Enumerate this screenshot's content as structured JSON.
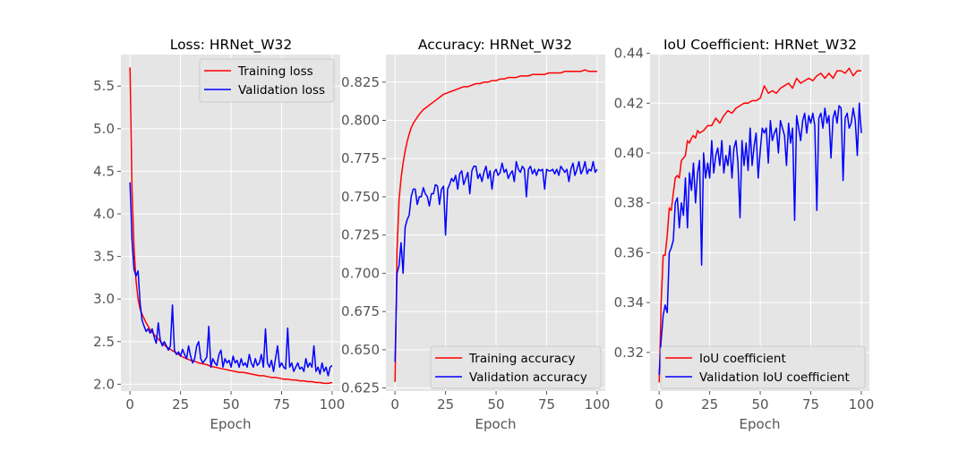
{
  "chart_data": [
    {
      "type": "line",
      "title": "Loss: HRNet_W32",
      "xlabel": "Epoch",
      "ylabel": "",
      "xlim": [
        -4.5,
        104
      ],
      "ylim": [
        1.92,
        5.87
      ],
      "xticks": [
        0,
        25,
        50,
        75,
        100
      ],
      "xtick_labels": [
        "0",
        "25",
        "50",
        "75",
        "100"
      ],
      "yticks": [
        2.0,
        2.5,
        3.0,
        3.5,
        4.0,
        4.5,
        5.0,
        5.5
      ],
      "ytick_labels": [
        "2.0",
        "2.5",
        "3.0",
        "3.5",
        "4.0",
        "4.5",
        "5.0",
        "5.5"
      ],
      "grid": true,
      "legend_position": "upper right",
      "series": [
        {
          "name": "Training loss",
          "color": "#ff0000",
          "x": [
            0,
            1,
            2,
            3,
            4,
            5,
            6,
            7,
            8,
            9,
            10,
            12,
            14,
            16,
            18,
            20,
            22,
            24,
            26,
            28,
            30,
            32,
            34,
            36,
            38,
            40,
            42,
            44,
            46,
            48,
            50,
            52,
            54,
            56,
            58,
            60,
            62,
            64,
            66,
            68,
            70,
            72,
            74,
            76,
            78,
            80,
            82,
            84,
            86,
            88,
            90,
            92,
            94,
            96,
            98,
            100
          ],
          "y": [
            5.72,
            4.3,
            3.6,
            3.22,
            3.0,
            2.88,
            2.82,
            2.77,
            2.72,
            2.68,
            2.64,
            2.58,
            2.53,
            2.48,
            2.44,
            2.41,
            2.38,
            2.35,
            2.32,
            2.3,
            2.28,
            2.27,
            2.25,
            2.24,
            2.23,
            2.21,
            2.2,
            2.19,
            2.18,
            2.17,
            2.16,
            2.15,
            2.14,
            2.14,
            2.13,
            2.12,
            2.11,
            2.1,
            2.1,
            2.09,
            2.08,
            2.08,
            2.07,
            2.06,
            2.06,
            2.05,
            2.05,
            2.04,
            2.04,
            2.03,
            2.03,
            2.02,
            2.02,
            2.01,
            2.01,
            2.02
          ]
        },
        {
          "name": "Validation loss",
          "color": "#0000ff",
          "x": [
            0,
            1,
            2,
            3,
            4,
            5,
            6,
            7,
            8,
            9,
            10,
            11,
            12,
            13,
            14,
            15,
            16,
            17,
            18,
            19,
            20,
            21,
            22,
            23,
            24,
            25,
            26,
            27,
            28,
            29,
            30,
            31,
            32,
            33,
            34,
            35,
            36,
            37,
            38,
            39,
            40,
            41,
            42,
            43,
            44,
            45,
            46,
            47,
            48,
            49,
            50,
            51,
            52,
            53,
            54,
            55,
            56,
            57,
            58,
            59,
            60,
            61,
            62,
            63,
            64,
            65,
            66,
            67,
            68,
            69,
            70,
            71,
            72,
            73,
            74,
            75,
            76,
            77,
            78,
            79,
            80,
            81,
            82,
            83,
            84,
            85,
            86,
            87,
            88,
            89,
            90,
            91,
            92,
            93,
            94,
            95,
            96,
            97,
            98,
            99,
            100
          ],
          "y": [
            4.37,
            3.7,
            3.35,
            3.27,
            3.33,
            2.95,
            2.75,
            2.68,
            2.62,
            2.65,
            2.6,
            2.65,
            2.55,
            2.48,
            2.72,
            2.52,
            2.45,
            2.5,
            2.45,
            2.4,
            2.45,
            2.93,
            2.4,
            2.35,
            2.38,
            2.33,
            2.41,
            2.35,
            2.3,
            2.45,
            2.33,
            2.25,
            2.3,
            2.45,
            2.5,
            2.3,
            2.25,
            2.28,
            2.32,
            2.68,
            2.2,
            2.3,
            2.25,
            2.22,
            2.35,
            2.4,
            2.2,
            2.3,
            2.25,
            2.28,
            2.2,
            2.33,
            2.25,
            2.28,
            2.2,
            2.3,
            2.22,
            2.25,
            2.2,
            2.35,
            2.25,
            2.2,
            2.3,
            2.22,
            2.25,
            2.35,
            2.2,
            2.65,
            2.25,
            2.2,
            2.28,
            2.15,
            2.3,
            2.45,
            2.2,
            2.25,
            2.2,
            2.18,
            2.66,
            2.2,
            2.25,
            2.15,
            2.2,
            2.25,
            2.18,
            2.2,
            2.15,
            2.3,
            2.2,
            2.25,
            2.2,
            2.45,
            2.15,
            2.2,
            2.12,
            2.25,
            2.15,
            2.2,
            2.1,
            2.2,
            2.22
          ]
        }
      ]
    },
    {
      "type": "line",
      "title": "Accuracy: HRNet_W32",
      "xlabel": "Epoch",
      "ylabel": "",
      "xlim": [
        -4.5,
        104
      ],
      "ylim": [
        0.623,
        0.843
      ],
      "xticks": [
        0,
        25,
        50,
        75,
        100
      ],
      "xtick_labels": [
        "0",
        "25",
        "50",
        "75",
        "100"
      ],
      "yticks": [
        0.625,
        0.65,
        0.675,
        0.7,
        0.725,
        0.75,
        0.775,
        0.8,
        0.825
      ],
      "ytick_labels": [
        "0.625",
        "0.650",
        "0.675",
        "0.700",
        "0.725",
        "0.750",
        "0.775",
        "0.800",
        "0.825"
      ],
      "grid": true,
      "legend_position": "lower right",
      "series": [
        {
          "name": "Training accuracy",
          "color": "#ff0000",
          "x": [
            0,
            1,
            2,
            3,
            4,
            5,
            6,
            7,
            8,
            9,
            10,
            12,
            14,
            16,
            18,
            20,
            22,
            24,
            26,
            28,
            30,
            32,
            34,
            36,
            38,
            40,
            42,
            44,
            46,
            48,
            50,
            52,
            54,
            56,
            58,
            60,
            62,
            64,
            66,
            68,
            70,
            72,
            74,
            76,
            78,
            80,
            82,
            84,
            86,
            88,
            90,
            92,
            94,
            96,
            98,
            100
          ],
          "y": [
            0.629,
            0.715,
            0.748,
            0.762,
            0.772,
            0.78,
            0.786,
            0.791,
            0.795,
            0.798,
            0.8,
            0.804,
            0.807,
            0.809,
            0.811,
            0.813,
            0.815,
            0.817,
            0.818,
            0.819,
            0.82,
            0.821,
            0.822,
            0.822,
            0.823,
            0.824,
            0.824,
            0.825,
            0.825,
            0.826,
            0.826,
            0.827,
            0.827,
            0.828,
            0.828,
            0.828,
            0.829,
            0.829,
            0.829,
            0.83,
            0.83,
            0.83,
            0.83,
            0.831,
            0.831,
            0.831,
            0.831,
            0.832,
            0.832,
            0.832,
            0.832,
            0.832,
            0.833,
            0.832,
            0.832,
            0.832
          ]
        },
        {
          "name": "Validation accuracy",
          "color": "#0000ff",
          "x": [
            0,
            1,
            2,
            3,
            4,
            5,
            6,
            7,
            8,
            9,
            10,
            11,
            12,
            13,
            14,
            15,
            16,
            17,
            18,
            19,
            20,
            21,
            22,
            23,
            24,
            25,
            26,
            27,
            28,
            29,
            30,
            31,
            32,
            33,
            34,
            35,
            36,
            37,
            38,
            39,
            40,
            41,
            42,
            43,
            44,
            45,
            46,
            47,
            48,
            49,
            50,
            51,
            52,
            53,
            54,
            55,
            56,
            57,
            58,
            59,
            60,
            61,
            62,
            63,
            64,
            65,
            66,
            67,
            68,
            69,
            70,
            71,
            72,
            73,
            74,
            75,
            76,
            77,
            78,
            79,
            80,
            81,
            82,
            83,
            84,
            85,
            86,
            87,
            88,
            89,
            90,
            91,
            92,
            93,
            94,
            95,
            96,
            97,
            98,
            99,
            100
          ],
          "y": [
            0.642,
            0.7,
            0.705,
            0.72,
            0.7,
            0.73,
            0.735,
            0.738,
            0.75,
            0.755,
            0.755,
            0.745,
            0.75,
            0.75,
            0.756,
            0.752,
            0.75,
            0.744,
            0.752,
            0.752,
            0.758,
            0.757,
            0.745,
            0.755,
            0.757,
            0.725,
            0.755,
            0.758,
            0.762,
            0.76,
            0.764,
            0.755,
            0.765,
            0.767,
            0.758,
            0.762,
            0.766,
            0.752,
            0.767,
            0.77,
            0.77,
            0.762,
            0.765,
            0.76,
            0.766,
            0.77,
            0.762,
            0.767,
            0.755,
            0.766,
            0.768,
            0.764,
            0.766,
            0.772,
            0.766,
            0.768,
            0.762,
            0.765,
            0.767,
            0.76,
            0.773,
            0.768,
            0.766,
            0.77,
            0.768,
            0.75,
            0.768,
            0.77,
            0.765,
            0.768,
            0.764,
            0.768,
            0.767,
            0.768,
            0.755,
            0.768,
            0.767,
            0.767,
            0.768,
            0.765,
            0.768,
            0.764,
            0.77,
            0.768,
            0.766,
            0.768,
            0.76,
            0.768,
            0.772,
            0.764,
            0.768,
            0.773,
            0.765,
            0.768,
            0.773,
            0.765,
            0.768,
            0.767,
            0.773,
            0.766,
            0.768
          ]
        }
      ]
    },
    {
      "type": "line",
      "title": "IoU Coefficient: HRNet_W32",
      "xlabel": "Epoch",
      "ylabel": "",
      "xlim": [
        -4.5,
        104
      ],
      "ylim": [
        0.3045,
        0.4395
      ],
      "xticks": [
        0,
        25,
        50,
        75,
        100
      ],
      "xtick_labels": [
        "0",
        "25",
        "50",
        "75",
        "100"
      ],
      "yticks": [
        0.32,
        0.34,
        0.36,
        0.38,
        0.4,
        0.42,
        0.44
      ],
      "ytick_labels": [
        "0.32",
        "0.34",
        "0.36",
        "0.38",
        "0.40",
        "0.42",
        "0.44"
      ],
      "grid": true,
      "legend_position": "lower right",
      "series": [
        {
          "name": "IoU coefficient",
          "color": "#ff0000",
          "x": [
            0,
            1,
            2,
            3,
            4,
            5,
            6,
            7,
            8,
            9,
            10,
            11,
            12,
            13,
            14,
            15,
            16,
            17,
            18,
            19,
            20,
            22,
            24,
            26,
            28,
            30,
            32,
            34,
            36,
            38,
            40,
            42,
            44,
            46,
            48,
            50,
            52,
            54,
            56,
            58,
            60,
            62,
            64,
            66,
            68,
            70,
            72,
            74,
            76,
            78,
            80,
            82,
            84,
            86,
            88,
            90,
            92,
            94,
            96,
            98,
            100
          ],
          "y": [
            0.308,
            0.34,
            0.359,
            0.359,
            0.367,
            0.378,
            0.377,
            0.384,
            0.39,
            0.391,
            0.39,
            0.397,
            0.398,
            0.399,
            0.405,
            0.404,
            0.406,
            0.407,
            0.406,
            0.409,
            0.408,
            0.409,
            0.411,
            0.411,
            0.414,
            0.412,
            0.415,
            0.417,
            0.416,
            0.418,
            0.419,
            0.42,
            0.42,
            0.421,
            0.421,
            0.422,
            0.427,
            0.424,
            0.425,
            0.424,
            0.426,
            0.427,
            0.428,
            0.426,
            0.43,
            0.428,
            0.429,
            0.43,
            0.429,
            0.431,
            0.432,
            0.43,
            0.432,
            0.43,
            0.433,
            0.433,
            0.432,
            0.434,
            0.431,
            0.433,
            0.433
          ]
        },
        {
          "name": "Validation IoU coefficient",
          "color": "#0000ff",
          "x": [
            0,
            1,
            2,
            3,
            4,
            5,
            6,
            7,
            8,
            9,
            10,
            11,
            12,
            13,
            14,
            15,
            16,
            17,
            18,
            19,
            20,
            21,
            22,
            23,
            24,
            25,
            26,
            27,
            28,
            29,
            30,
            31,
            32,
            33,
            34,
            35,
            36,
            37,
            38,
            39,
            40,
            41,
            42,
            43,
            44,
            45,
            46,
            47,
            48,
            49,
            50,
            51,
            52,
            53,
            54,
            55,
            56,
            57,
            58,
            59,
            60,
            61,
            62,
            63,
            64,
            65,
            66,
            67,
            68,
            69,
            70,
            71,
            72,
            73,
            74,
            75,
            76,
            77,
            78,
            79,
            80,
            81,
            82,
            83,
            84,
            85,
            86,
            87,
            88,
            89,
            90,
            91,
            92,
            93,
            94,
            95,
            96,
            97,
            98,
            99,
            100
          ],
          "y": [
            0.311,
            0.325,
            0.335,
            0.339,
            0.336,
            0.36,
            0.362,
            0.365,
            0.38,
            0.382,
            0.37,
            0.38,
            0.375,
            0.39,
            0.37,
            0.392,
            0.385,
            0.396,
            0.38,
            0.392,
            0.397,
            0.355,
            0.4,
            0.39,
            0.396,
            0.39,
            0.405,
            0.392,
            0.399,
            0.402,
            0.395,
            0.405,
            0.392,
            0.399,
            0.395,
            0.403,
            0.39,
            0.402,
            0.405,
            0.396,
            0.374,
            0.405,
            0.395,
            0.404,
            0.393,
            0.41,
            0.395,
            0.403,
            0.408,
            0.39,
            0.401,
            0.41,
            0.408,
            0.41,
            0.396,
            0.413,
            0.405,
            0.408,
            0.41,
            0.4,
            0.413,
            0.41,
            0.407,
            0.395,
            0.412,
            0.404,
            0.41,
            0.373,
            0.415,
            0.41,
            0.405,
            0.413,
            0.416,
            0.408,
            0.415,
            0.412,
            0.416,
            0.411,
            0.377,
            0.414,
            0.416,
            0.41,
            0.418,
            0.412,
            0.415,
            0.398,
            0.414,
            0.417,
            0.412,
            0.419,
            0.418,
            0.389,
            0.414,
            0.416,
            0.41,
            0.412,
            0.418,
            0.413,
            0.399,
            0.42,
            0.408
          ]
        }
      ]
    }
  ]
}
